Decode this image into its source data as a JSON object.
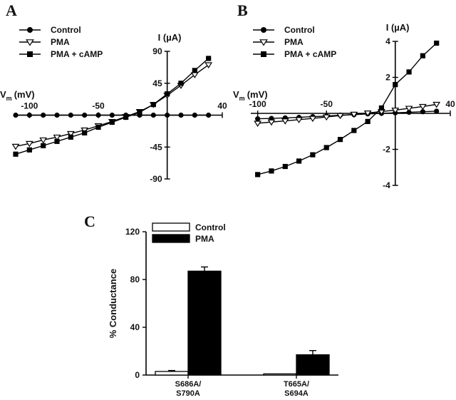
{
  "chart_data": [
    {
      "type": "line",
      "panel": "A",
      "xlabel_main": "V",
      "xlabel_sub": "m",
      "xlabel_unit": "(mV)",
      "ylabel": "I (µA)",
      "xlim": [
        -110,
        40
      ],
      "ylim": [
        -90,
        90
      ],
      "x_ticks": [
        -100,
        -50,
        40
      ],
      "x_tick_labels": [
        "-100",
        "-50",
        "40"
      ],
      "y_ticks": [
        90,
        45,
        -45,
        -90
      ],
      "y_tick_labels": [
        "90",
        "45",
        "-45",
        "-90"
      ],
      "legend_position": "top-left",
      "series": [
        {
          "name": "Control",
          "marker": "circle",
          "x": [
            -110,
            -100,
            -90,
            -80,
            -70,
            -60,
            -50,
            -40,
            -30,
            -20,
            -10,
            0,
            10,
            20,
            30
          ],
          "y": [
            0,
            0,
            0,
            0,
            0,
            0,
            0,
            0,
            0,
            0,
            0,
            0,
            0,
            0,
            0
          ]
        },
        {
          "name": "PMA",
          "marker": "triangle-down-open",
          "x": [
            -110,
            -100,
            -90,
            -80,
            -70,
            -60,
            -50,
            -40,
            -30,
            -20,
            -10,
            0,
            10,
            20,
            30
          ],
          "y": [
            -44,
            -40,
            -35,
            -31,
            -26,
            -21,
            -15,
            -9,
            -2,
            5,
            15,
            28,
            42,
            57,
            71
          ]
        },
        {
          "name": "PMA + cAMP",
          "marker": "square",
          "x": [
            -110,
            -100,
            -90,
            -80,
            -70,
            -60,
            -50,
            -40,
            -30,
            -20,
            -10,
            0,
            10,
            20,
            30
          ],
          "y": [
            -55,
            -49,
            -43,
            -37,
            -31,
            -25,
            -17,
            -10,
            -3,
            4,
            15,
            30,
            45,
            63,
            80
          ]
        }
      ]
    },
    {
      "type": "line",
      "panel": "B",
      "xlabel_main": "V",
      "xlabel_sub": "m",
      "xlabel_unit": "(mV)",
      "ylabel": "I (µA)",
      "xlim": [
        -105,
        40
      ],
      "ylim": [
        -4,
        4
      ],
      "x_ticks": [
        -100,
        -50,
        40
      ],
      "x_tick_labels": [
        "-100",
        "-50",
        "40"
      ],
      "y_ticks": [
        4,
        2,
        -2,
        -4
      ],
      "y_tick_labels": [
        "4",
        "2",
        "-2",
        "-4"
      ],
      "legend_position": "top-left",
      "series": [
        {
          "name": "Control",
          "marker": "circle",
          "x": [
            -100,
            -90,
            -80,
            -70,
            -60,
            -50,
            -40,
            -30,
            -20,
            -10,
            0,
            10,
            20,
            30
          ],
          "y": [
            -0.3,
            -0.28,
            -0.25,
            -0.22,
            -0.18,
            -0.15,
            -0.1,
            -0.07,
            -0.03,
            0,
            0.03,
            0.06,
            0.09,
            0.12
          ]
        },
        {
          "name": "PMA",
          "marker": "triangle-down-open",
          "x": [
            -100,
            -90,
            -80,
            -70,
            -60,
            -50,
            -40,
            -30,
            -20,
            -10,
            0,
            10,
            20,
            30
          ],
          "y": [
            -0.55,
            -0.48,
            -0.42,
            -0.35,
            -0.28,
            -0.2,
            -0.12,
            -0.05,
            0.02,
            0.1,
            0.18,
            0.28,
            0.38,
            0.5
          ]
        },
        {
          "name": "PMA + cAMP",
          "marker": "square",
          "x": [
            -100,
            -90,
            -80,
            -70,
            -60,
            -50,
            -40,
            -30,
            -20,
            -10,
            0,
            10,
            20,
            30
          ],
          "y": [
            -3.4,
            -3.2,
            -2.95,
            -2.65,
            -2.3,
            -1.9,
            -1.45,
            -0.95,
            -0.45,
            0.3,
            1.6,
            2.3,
            3.2,
            3.9
          ]
        }
      ]
    },
    {
      "type": "bar",
      "panel": "C",
      "ylabel": "% Conductance",
      "ylim": [
        0,
        120
      ],
      "y_ticks": [
        0,
        40,
        80,
        120
      ],
      "y_tick_labels": [
        "0",
        "40",
        "80",
        "120"
      ],
      "categories": [
        {
          "line1": "S686A/",
          "line2": "S790A"
        },
        {
          "line1": "T665A/",
          "line2": "S694A"
        }
      ],
      "legend_position": "top-left",
      "series": [
        {
          "name": "Control",
          "fill": "#ffffff",
          "values": [
            3,
            1
          ],
          "errors": [
            0.8,
            0.3
          ]
        },
        {
          "name": "PMA",
          "fill": "#000000",
          "values": [
            87,
            17
          ],
          "errors": [
            3.5,
            3.5
          ]
        }
      ]
    }
  ]
}
